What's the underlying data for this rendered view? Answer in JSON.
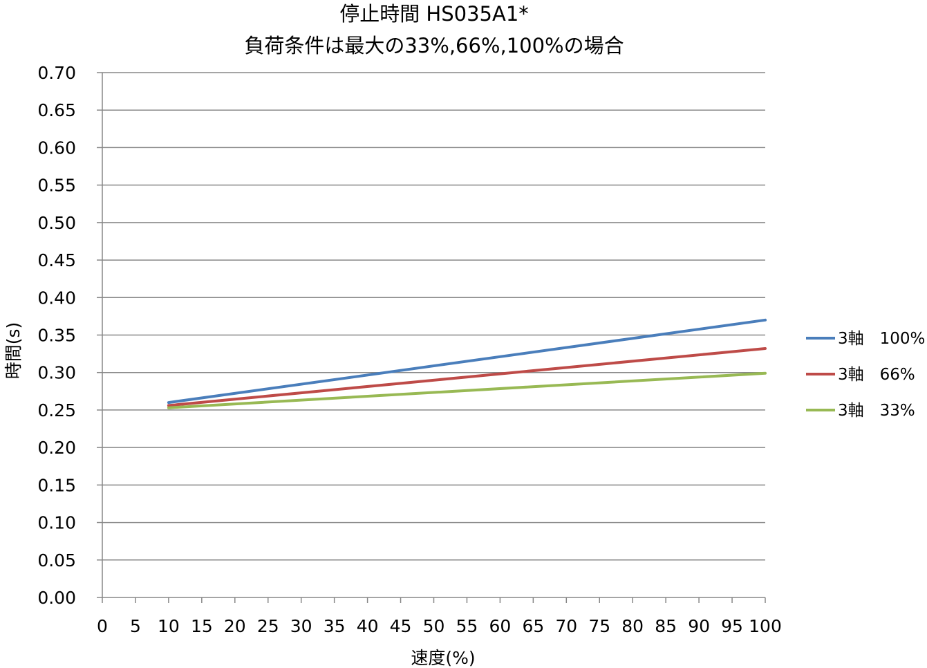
{
  "chart_data": {
    "type": "line",
    "title": "停止時間 HS035A1*",
    "subtitle": "負荷条件は最大の33%,66%,100%の場合",
    "xlabel": "速度(%)",
    "ylabel": "時間(s)",
    "xlim": [
      0,
      100
    ],
    "ylim": [
      0,
      0.7
    ],
    "xticks": [
      0,
      5,
      10,
      15,
      20,
      25,
      30,
      35,
      40,
      45,
      50,
      55,
      60,
      65,
      70,
      75,
      80,
      85,
      90,
      95,
      100
    ],
    "yticks": [
      0.0,
      0.05,
      0.1,
      0.15,
      0.2,
      0.25,
      0.3,
      0.35,
      0.4,
      0.45,
      0.5,
      0.55,
      0.6,
      0.65,
      0.7
    ],
    "grid": "horizontal",
    "legend": "right",
    "series": [
      {
        "name": "3軸　100%",
        "color": "#4a7ebb",
        "x": [
          10,
          100
        ],
        "values": [
          0.26,
          0.37
        ]
      },
      {
        "name": "3軸　66%",
        "color": "#be4b48",
        "x": [
          10,
          100
        ],
        "values": [
          0.256,
          0.332
        ]
      },
      {
        "name": "3軸　33%",
        "color": "#98b954",
        "x": [
          10,
          100
        ],
        "values": [
          0.253,
          0.299
        ]
      }
    ]
  }
}
